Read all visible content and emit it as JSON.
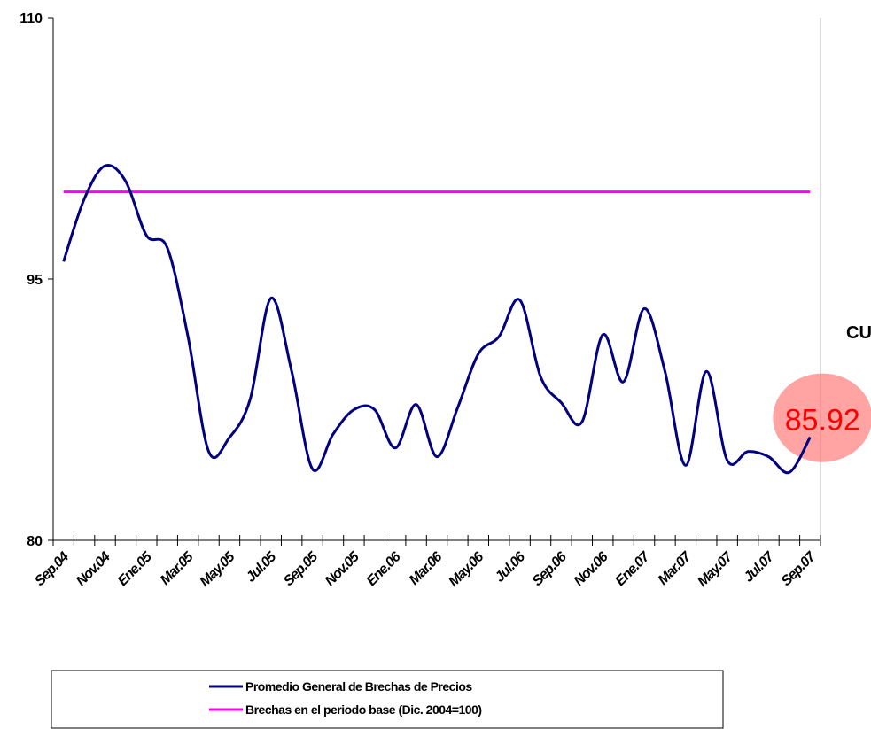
{
  "chart_data": {
    "type": "line",
    "categories": [
      "Sep.04",
      null,
      "Nov.04",
      null,
      "Ene.05",
      null,
      "Mar.05",
      null,
      "May.05",
      null,
      "Jul.05",
      null,
      "Sep.05",
      null,
      "Nov.05",
      null,
      "Ene.06",
      null,
      "Mar.06",
      null,
      "May.06",
      null,
      "Jul.06",
      null,
      "Sep.06",
      null,
      "Nov.06",
      null,
      "Ene.07",
      null,
      "Mar.07",
      null,
      "May.07",
      null,
      "Jul.07",
      null,
      "Sep.07"
    ],
    "series": [
      {
        "name": "Promedio General de Brechas de Precios",
        "color": "#000080",
        "values": [
          96.0,
          99.6,
          101.5,
          100.6,
          97.5,
          96.8,
          91.7,
          85.1,
          85.9,
          88.1,
          93.9,
          89.7,
          84.1,
          86.1,
          87.5,
          87.5,
          85.3,
          87.8,
          84.8,
          87.6,
          90.7,
          91.7,
          93.8,
          89.4,
          87.9,
          86.8,
          91.8,
          89.1,
          93.3,
          89.7,
          84.3,
          89.7,
          84.6,
          85.1,
          84.8,
          83.9,
          85.92
        ]
      },
      {
        "name": "Brechas en el periodo base (Dic. 2004=100)",
        "color": "#ff00ff",
        "values": [
          100,
          100,
          100,
          100,
          100,
          100,
          100,
          100,
          100,
          100,
          100,
          100,
          100,
          100,
          100,
          100,
          100,
          100,
          100,
          100,
          100,
          100,
          100,
          100,
          100,
          100,
          100,
          100,
          100,
          100,
          100,
          100,
          100,
          100,
          100,
          100,
          100
        ]
      }
    ],
    "ylim": [
      80,
      110
    ],
    "yticks": [
      80,
      95,
      110
    ],
    "annotations": [
      "85.92",
      "CU"
    ],
    "grid": false
  }
}
